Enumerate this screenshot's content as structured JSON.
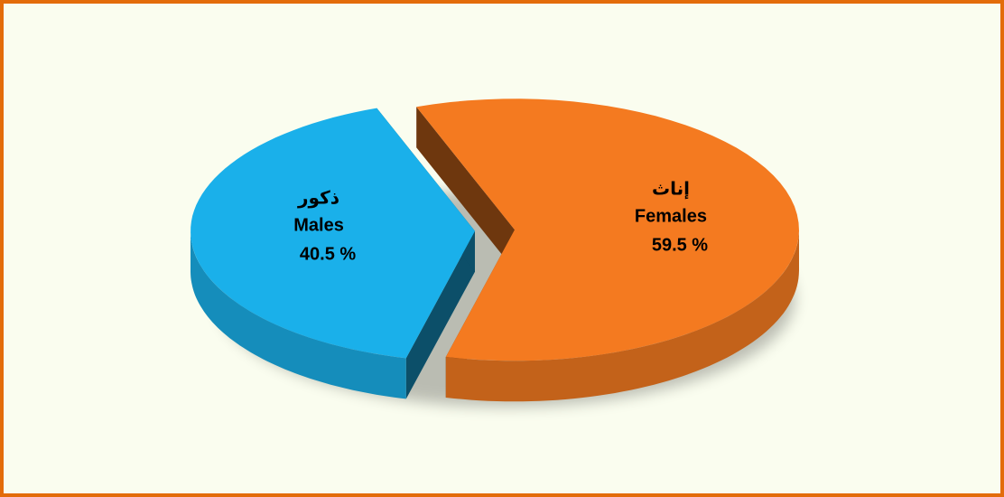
{
  "chart_data": {
    "type": "pie",
    "categories": [
      "Males",
      "Females"
    ],
    "arabic_categories": [
      "ذكور",
      "إناث"
    ],
    "values": [
      40.5,
      59.5
    ],
    "value_labels": [
      "40.5 %",
      "59.5 %"
    ],
    "colors": [
      "#1ab0ea",
      "#f47a20"
    ]
  }
}
